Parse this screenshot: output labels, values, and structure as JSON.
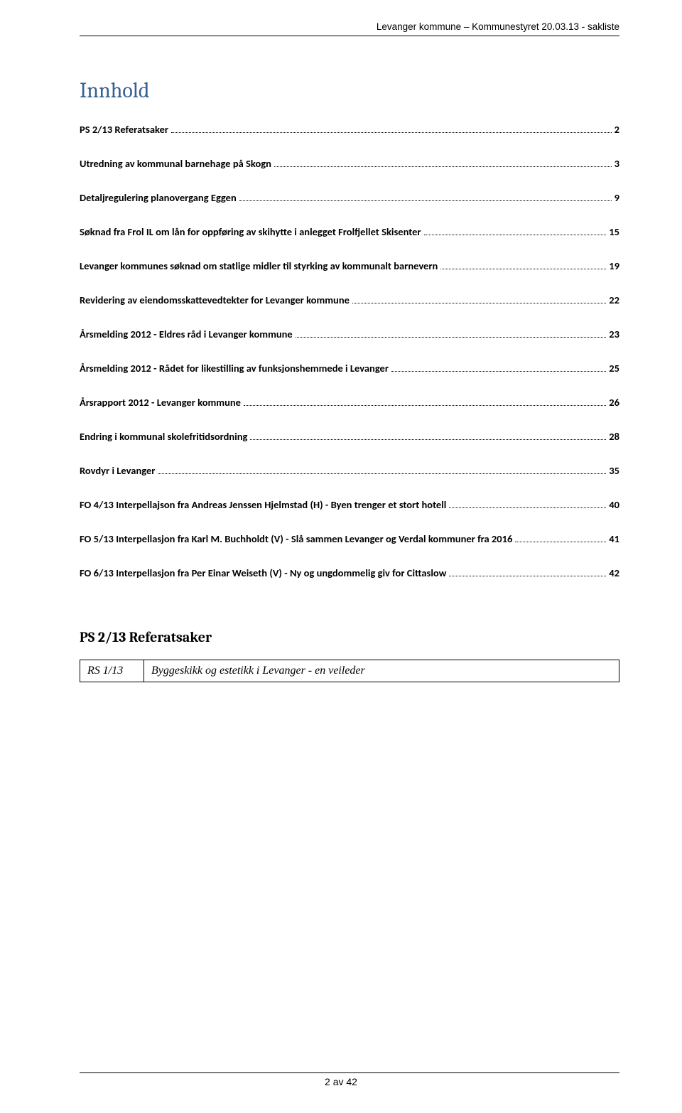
{
  "header": {
    "text": "Levanger kommune – Kommunestyret 20.03.13 - sakliste"
  },
  "toc": {
    "title": "Innhold",
    "title_color": "#365f91",
    "title_fontsize": 30,
    "entry_fontsize": 14.5,
    "entries": [
      {
        "label": "PS 2/13 Referatsaker",
        "page": "2"
      },
      {
        "label": "Utredning av kommunal barnehage på Skogn",
        "page": "3"
      },
      {
        "label": "Detaljregulering planovergang Eggen",
        "page": "9"
      },
      {
        "label": "Søknad fra Frol IL om lån for oppføring av skihytte i anlegget Frolfjellet Skisenter",
        "page": "15"
      },
      {
        "label": "Levanger kommunes søknad om statlige midler til styrking av kommunalt barnevern",
        "page": "19"
      },
      {
        "label": "Revidering av eiendomsskattevedtekter for Levanger kommune",
        "page": "22"
      },
      {
        "label": "Årsmelding 2012 - Eldres råd i Levanger kommune",
        "page": "23"
      },
      {
        "label": "Årsmelding 2012 - Rådet for likestilling av funksjonshemmede i Levanger",
        "page": "25"
      },
      {
        "label": "Årsrapport 2012 - Levanger kommune",
        "page": "26"
      },
      {
        "label": "Endring i kommunal skolefritidsordning",
        "page": "28"
      },
      {
        "label": "Rovdyr i Levanger",
        "page": "35"
      },
      {
        "label": "FO 4/13 Interpellajson fra Andreas Jenssen Hjelmstad (H) -  Byen trenger et stort hotell",
        "page": "40"
      },
      {
        "label": "FO 5/13 Interpellasjon fra Karl M. Buchholdt (V) - Slå sammen Levanger og Verdal kommuner fra 2016",
        "page": "41"
      },
      {
        "label": "FO 6/13 Interpellasjon fra Per Einar Weiseth (V) - Ny og ungdommelig giv for Cittaslow",
        "page": "42"
      }
    ]
  },
  "section": {
    "heading": "PS 2/13 Referatsaker",
    "table": {
      "rows": [
        [
          "RS 1/13",
          "Byggeskikk og estetikk i Levanger - en veileder"
        ]
      ]
    }
  },
  "footer": {
    "text": "2 av 42"
  }
}
